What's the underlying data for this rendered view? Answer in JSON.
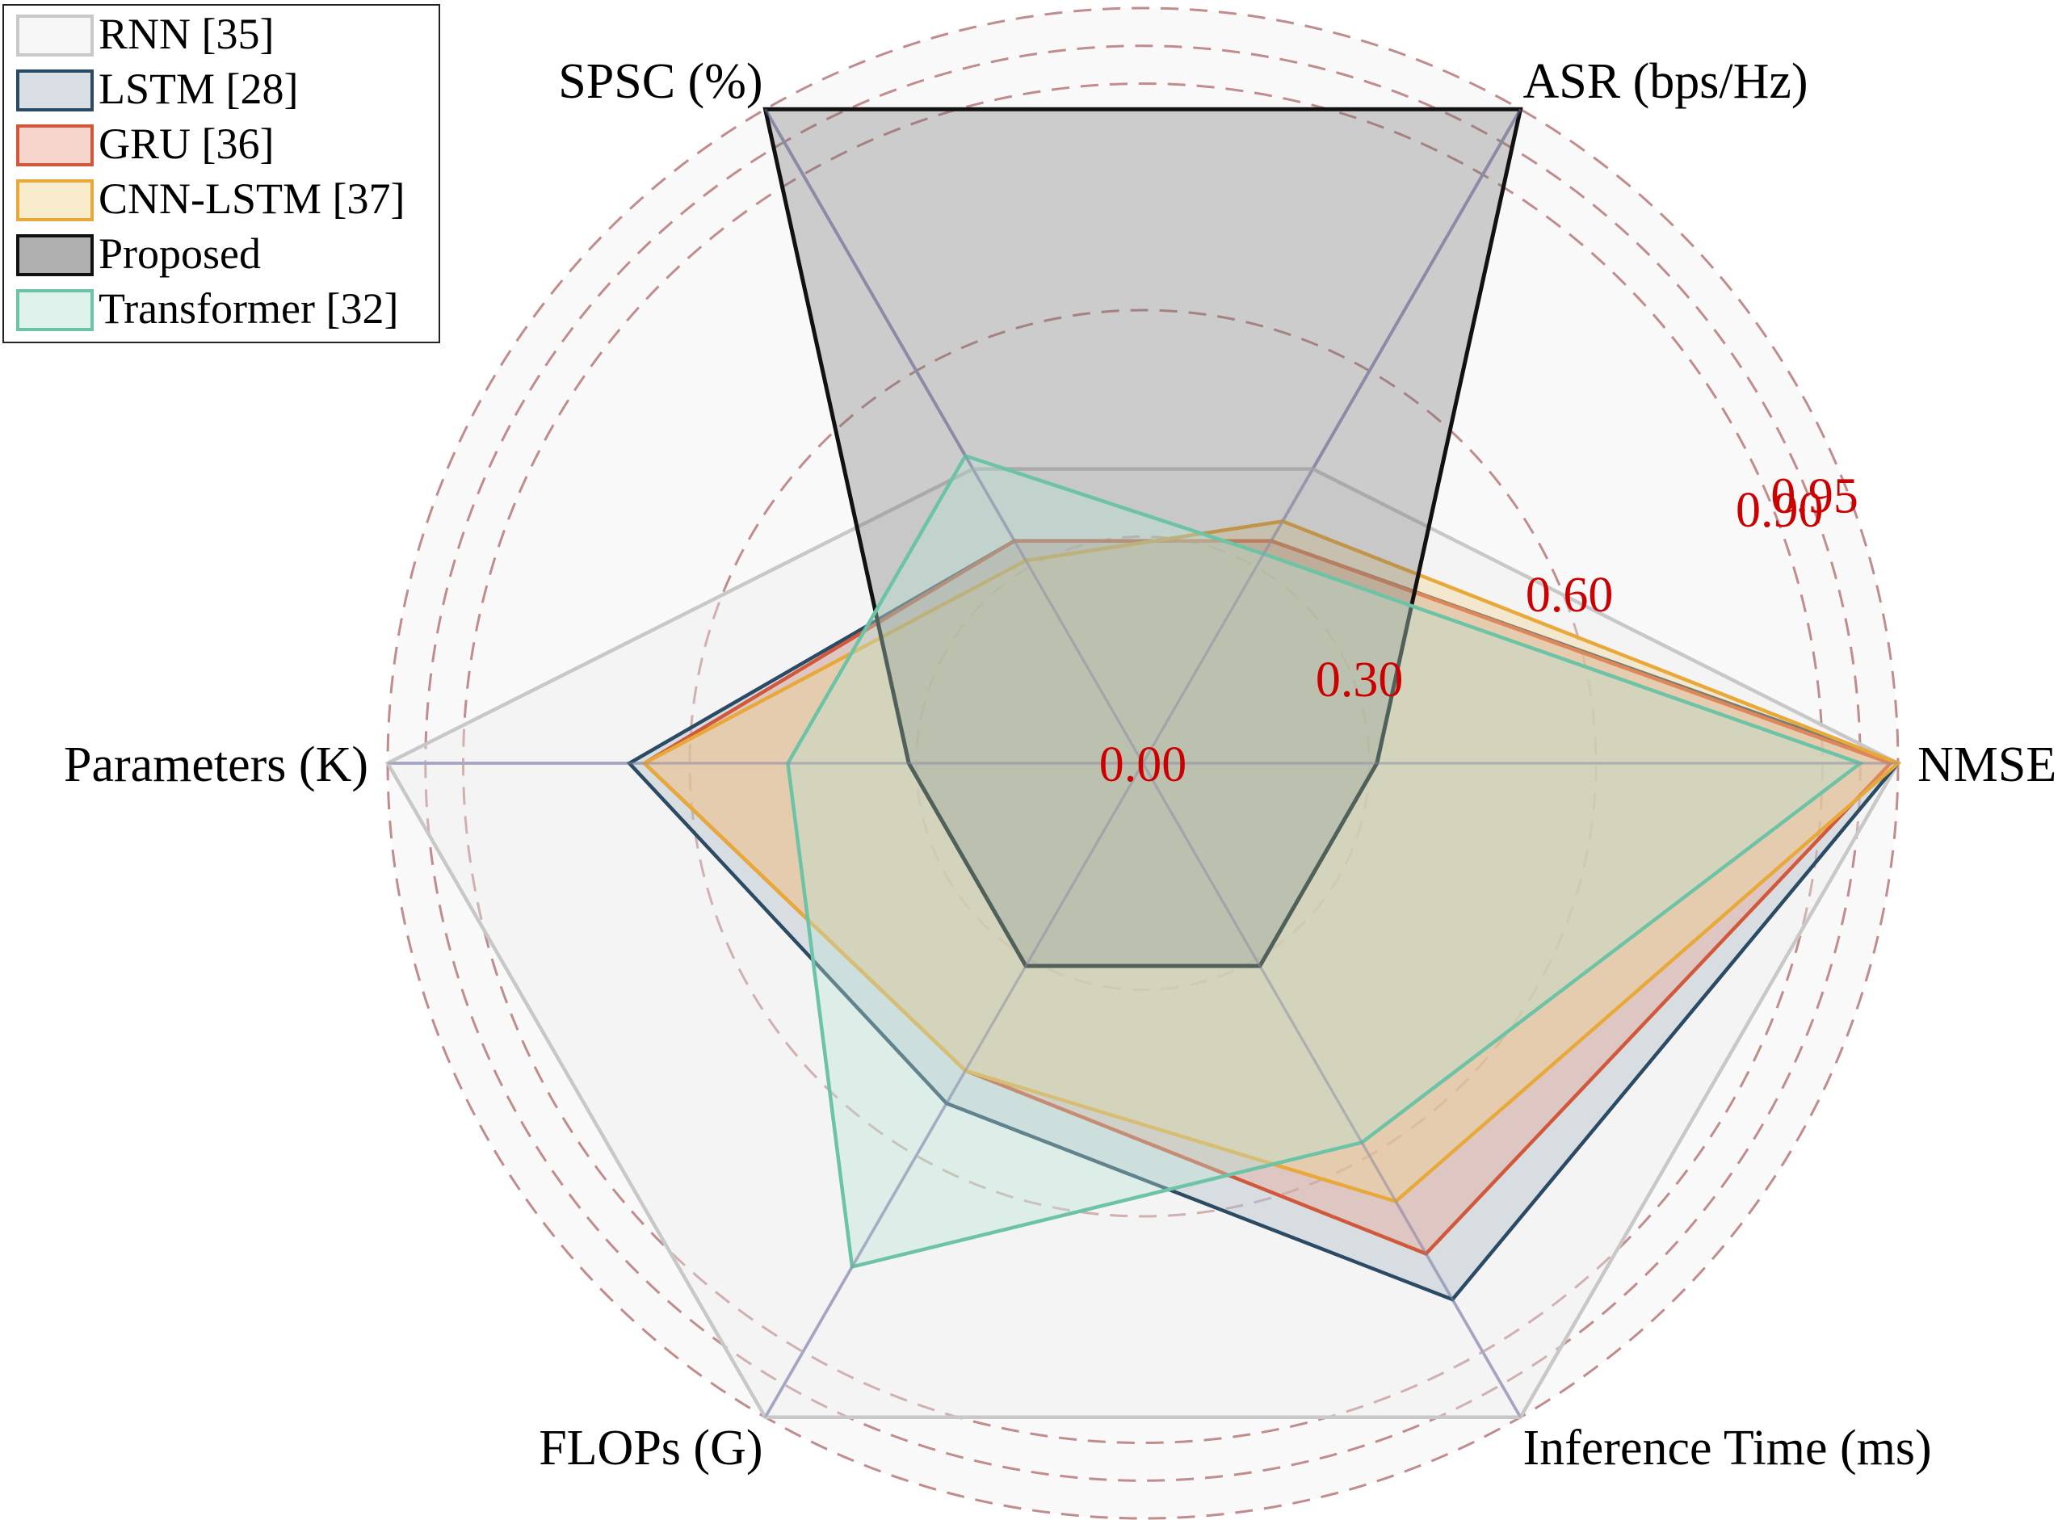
{
  "chart_data": {
    "type": "radar",
    "axes": [
      "NMSE",
      "ASR (bps/Hz)",
      "SPSC (%)",
      "Parameters (K)",
      "FLOPs (G)",
      "Inference Time (ms)"
    ],
    "radial_ticks": [
      "0.00",
      "0.30",
      "0.60",
      "0.90",
      "0.95"
    ],
    "radial_tick_values": [
      0.0,
      0.3,
      0.6,
      0.9,
      0.95
    ],
    "rlim": [
      0,
      1.0
    ],
    "grid": true,
    "legend_position": "top-left",
    "series": [
      {
        "name": "RNN [35]",
        "values": [
          1.0,
          0.45,
          0.45,
          1.0,
          1.0,
          1.0
        ],
        "edge_color": "#c8c8c8",
        "fill_color": "#ededed"
      },
      {
        "name": "LSTM [28]",
        "values": [
          1.0,
          0.34,
          0.34,
          0.68,
          0.52,
          0.82
        ],
        "edge_color": "#2b4a63",
        "fill_color": "#aab8c6"
      },
      {
        "name": "GRU [36]",
        "values": [
          0.99,
          0.34,
          0.34,
          0.66,
          0.47,
          0.75
        ],
        "edge_color": "#d1583a",
        "fill_color": "#e8a28f"
      },
      {
        "name": "CNN-LSTM [37]",
        "values": [
          1.0,
          0.37,
          0.31,
          0.66,
          0.47,
          0.67
        ],
        "edge_color": "#e8a93a",
        "fill_color": "#f2d48f"
      },
      {
        "name": "Proposed",
        "values": [
          0.31,
          1.0,
          1.0,
          0.31,
          0.31,
          0.31
        ],
        "edge_color": "#111111",
        "fill_color": "#6e6e6e"
      },
      {
        "name": "Transformer [32]",
        "values": [
          0.95,
          0.32,
          0.47,
          0.47,
          0.77,
          0.58
        ],
        "edge_color": "#6cc3a6",
        "fill_color": "#b9e3d3"
      }
    ]
  }
}
